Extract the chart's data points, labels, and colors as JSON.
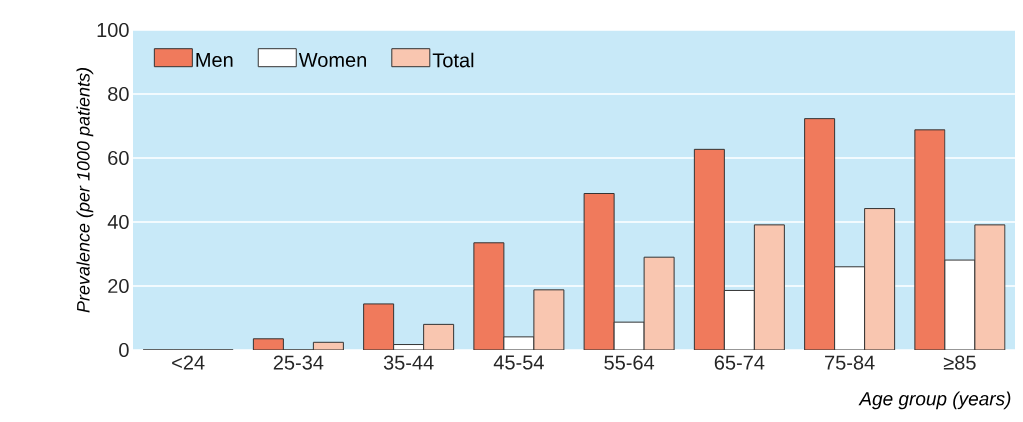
{
  "chart_data": {
    "type": "bar",
    "xlabel": "Age group (years)",
    "ylabel": "Prevalence (per 1000 patients)",
    "categories": [
      "<24",
      "25-34",
      "35-44",
      "45-54",
      "55-64",
      "65-74",
      "75-84",
      "≥85"
    ],
    "series": [
      {
        "name": "Men",
        "color": "#f07a5c",
        "values": [
          0,
          3.5,
          14.4,
          33.5,
          48.9,
          62.7,
          72.3,
          68.8
        ]
      },
      {
        "name": "Women",
        "color": "#ffffff",
        "values": [
          0,
          0,
          1.7,
          4.1,
          8.7,
          18.6,
          26,
          28.1
        ]
      },
      {
        "name": "Total",
        "color": "#f9c6b0",
        "values": [
          0,
          2.4,
          8,
          18.8,
          29,
          39.1,
          44.2,
          39.1
        ]
      }
    ],
    "ylim": [
      0,
      100
    ],
    "yticks": [
      0,
      20,
      40,
      60,
      80,
      100
    ],
    "grid": "y",
    "legend": "top left"
  }
}
